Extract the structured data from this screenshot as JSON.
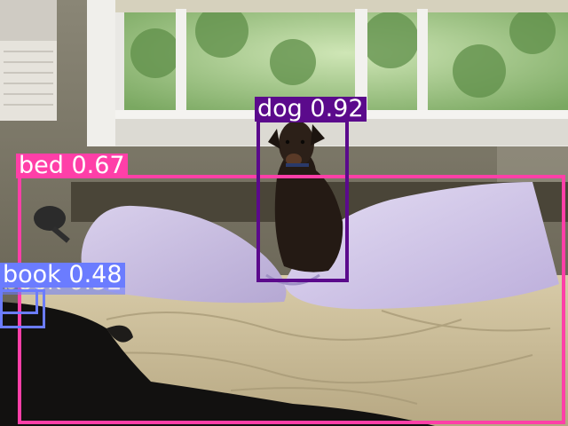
{
  "image": {
    "description_free": true,
    "background_color": "#5a5040"
  },
  "detections": [
    {
      "label": "bed",
      "score": "0.67",
      "color": "#ff3fa8"
    },
    {
      "label": "dog",
      "score": "0.92",
      "color": "#5b0a8c"
    },
    {
      "label": "book",
      "score": "0.48",
      "color": "#6b7cff"
    },
    {
      "label": "book",
      "score": "0.32",
      "color": "#6b7cff"
    }
  ]
}
